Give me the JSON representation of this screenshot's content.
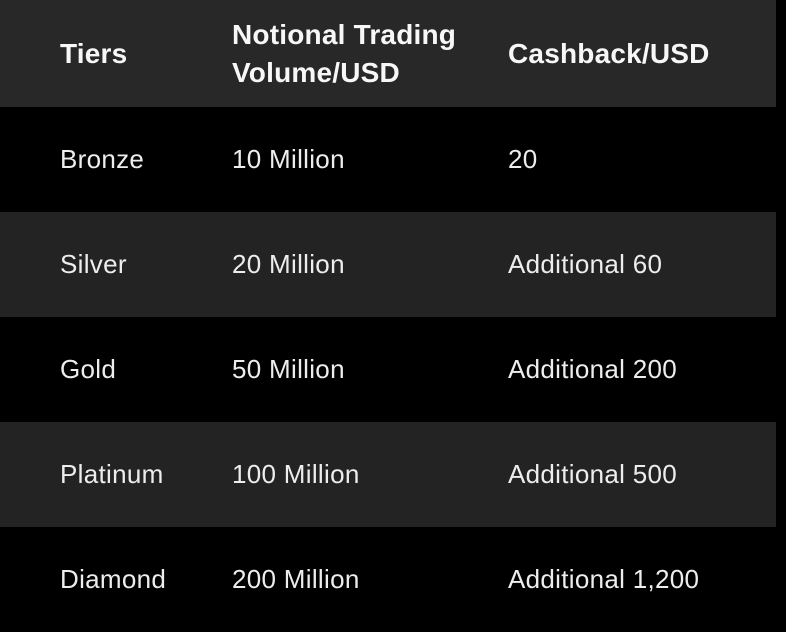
{
  "page": {
    "background_color": "#000000",
    "header_bg_color": "#282828",
    "row_alt_bg_color": "#232323",
    "row_bg_color": "#000000",
    "header_text_color": "#f7f7f7",
    "body_text_color": "#ededed"
  },
  "table": {
    "columns": [
      {
        "label": "Tiers"
      },
      {
        "label": "Notional Trading Volume/USD"
      },
      {
        "label": "Cashback/USD"
      }
    ],
    "rows": [
      {
        "tier": "Bronze",
        "volume": "10 Million",
        "cashback": "20"
      },
      {
        "tier": "Silver",
        "volume": "20 Million",
        "cashback": "Additional 60"
      },
      {
        "tier": "Gold",
        "volume": "50 Million",
        "cashback": "Additional 200"
      },
      {
        "tier": "Platinum",
        "volume": "100 Million",
        "cashback": "Additional 500"
      },
      {
        "tier": "Diamond",
        "volume": "200 Million",
        "cashback": "Additional 1,200"
      }
    ]
  },
  "chart_data": {
    "type": "table",
    "title": "",
    "columns": [
      "Tiers",
      "Notional Trading Volume/USD",
      "Cashback/USD"
    ],
    "rows": [
      [
        "Bronze",
        "10 Million",
        "20"
      ],
      [
        "Silver",
        "20 Million",
        "Additional 60"
      ],
      [
        "Gold",
        "50 Million",
        "Additional 200"
      ],
      [
        "Platinum",
        "100 Million",
        "Additional 500"
      ],
      [
        "Diamond",
        "200 Million",
        "Additional 1,200"
      ]
    ]
  }
}
